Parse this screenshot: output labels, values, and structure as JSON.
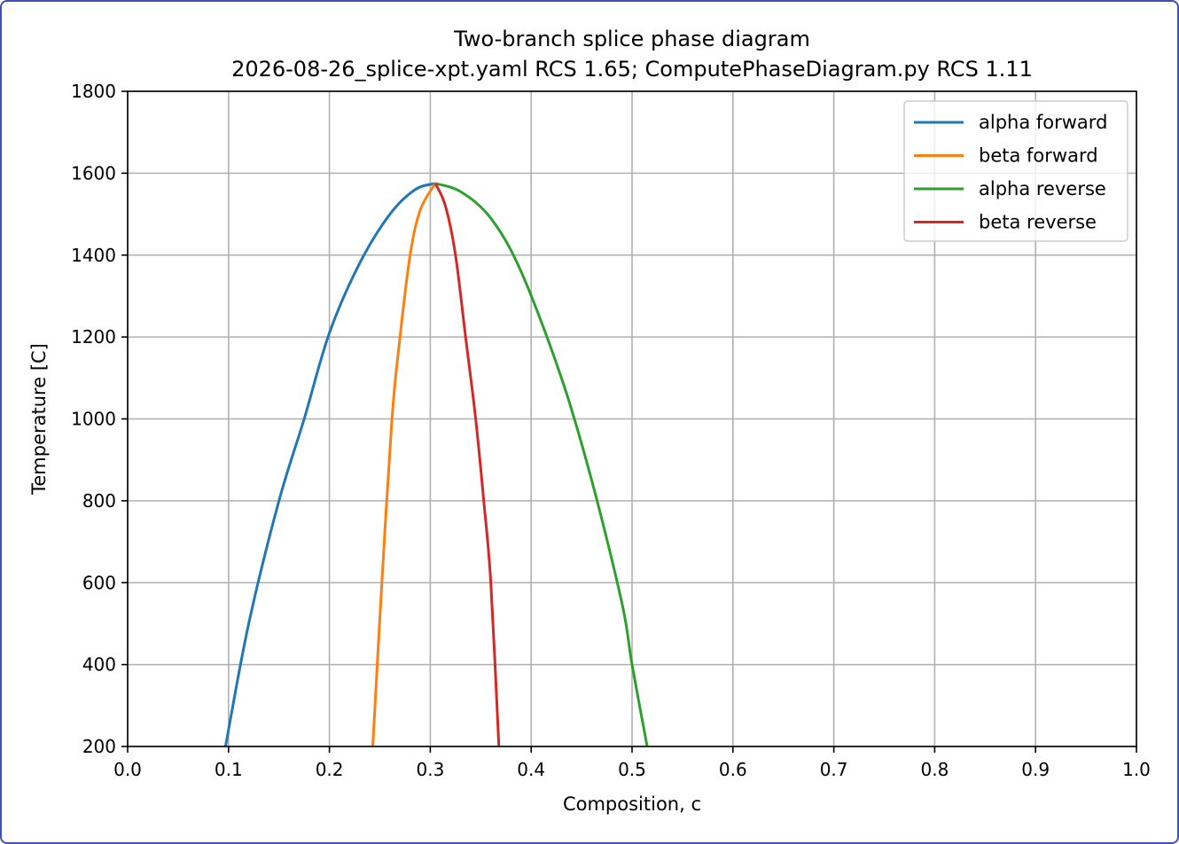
{
  "chart_data": {
    "type": "line",
    "title": "Two-branch splice phase diagram",
    "subtitle": "2026-08-26_splice-xpt.yaml RCS 1.65; ComputePhaseDiagram.py RCS 1.11",
    "xlabel": "Composition, c",
    "ylabel": "Temperature [C]",
    "xlim": [
      0.0,
      1.0
    ],
    "ylim": [
      200,
      1800
    ],
    "xticks": [
      "0.0",
      "0.1",
      "0.2",
      "0.3",
      "0.4",
      "0.5",
      "0.6",
      "0.7",
      "0.8",
      "0.9",
      "1.0"
    ],
    "yticks": [
      "200",
      "400",
      "600",
      "800",
      "1000",
      "1200",
      "1400",
      "1600",
      "1800"
    ],
    "grid": true,
    "legend_position": "top-right",
    "series": [
      {
        "name": "alpha forward",
        "color": "#1f77b4",
        "points": [
          [
            0.097,
            200
          ],
          [
            0.12,
            500
          ],
          [
            0.15,
            800
          ],
          [
            0.175,
            1000
          ],
          [
            0.2,
            1210
          ],
          [
            0.23,
            1380
          ],
          [
            0.26,
            1500
          ],
          [
            0.285,
            1560
          ],
          [
            0.305,
            1575
          ]
        ]
      },
      {
        "name": "beta forward",
        "color": "#ff7f0e",
        "points": [
          [
            0.243,
            200
          ],
          [
            0.252,
            600
          ],
          [
            0.262,
            1000
          ],
          [
            0.27,
            1200
          ],
          [
            0.28,
            1400
          ],
          [
            0.29,
            1510
          ],
          [
            0.305,
            1575
          ]
        ]
      },
      {
        "name": "alpha reverse",
        "color": "#2ca02c",
        "points": [
          [
            0.305,
            1575
          ],
          [
            0.33,
            1555
          ],
          [
            0.36,
            1490
          ],
          [
            0.39,
            1360
          ],
          [
            0.43,
            1100
          ],
          [
            0.46,
            850
          ],
          [
            0.49,
            550
          ],
          [
            0.5,
            400
          ],
          [
            0.515,
            200
          ]
        ]
      },
      {
        "name": "beta reverse",
        "color": "#d62728",
        "points": [
          [
            0.305,
            1575
          ],
          [
            0.315,
            1520
          ],
          [
            0.325,
            1400
          ],
          [
            0.335,
            1200
          ],
          [
            0.345,
            1000
          ],
          [
            0.353,
            800
          ],
          [
            0.36,
            600
          ],
          [
            0.368,
            200
          ]
        ]
      }
    ]
  }
}
